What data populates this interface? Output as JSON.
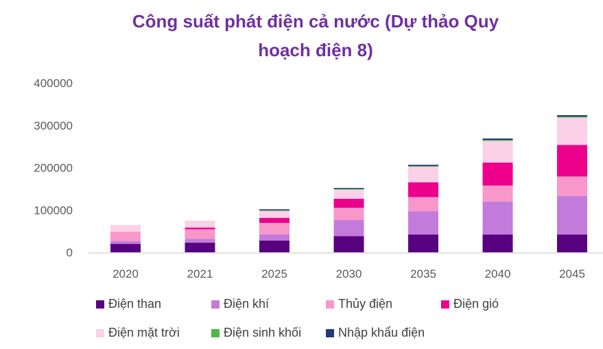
{
  "chart_data": {
    "type": "bar",
    "stacked": true,
    "title": "Công suất phát điện cả nước (Dự thảo Quy hoạch điện 8)",
    "title_lines": [
      "Công suất phát điện cả nước (Dự thảo Quy",
      "hoạch điện 8)"
    ],
    "categories": [
      "2020",
      "2021",
      "2025",
      "2030",
      "2035",
      "2040",
      "2045"
    ],
    "ylim": [
      0,
      400000
    ],
    "yticks": [
      "0",
      "100000",
      "200000",
      "300000",
      "400000"
    ],
    "grid": false,
    "legend_position": "bottom",
    "series": [
      {
        "name": "Điện than",
        "color": "#570080",
        "values": [
          20000,
          23000,
          28000,
          38400,
          42000,
          42000,
          42000
        ]
      },
      {
        "name": "Điện khí",
        "color": "#C37BDB",
        "values": [
          6500,
          8700,
          14600,
          37700,
          55000,
          77700,
          91300
        ]
      },
      {
        "name": "Thủy điện",
        "color": "#F897C9",
        "values": [
          22000,
          22700,
          27000,
          29200,
          33500,
          37900,
          45800
        ]
      },
      {
        "name": "Điện gió",
        "color": "#EC008C",
        "values": [
          0,
          4200,
          11800,
          21000,
          35000,
          54400,
          74500
        ]
      },
      {
        "name": "Điện mặt trời",
        "color": "#FCD0E6",
        "values": [
          16000,
          16000,
          17300,
          22000,
          36700,
          51300,
          64800
        ]
      },
      {
        "name": "Điện sinh khối",
        "color": "#4DB848",
        "values": [
          0,
          0,
          500,
          1500,
          1500,
          2000,
          2000
        ]
      },
      {
        "name": "Nhập khẩu điện",
        "color": "#1F3A7A",
        "values": [
          0,
          0,
          2500,
          2200,
          3000,
          3500,
          3500
        ]
      }
    ]
  }
}
